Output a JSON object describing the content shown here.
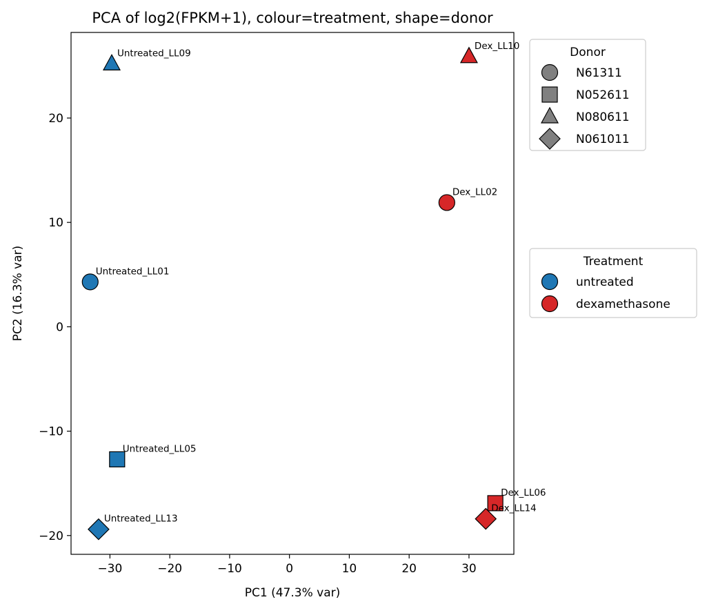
{
  "chart_data": {
    "type": "scatter",
    "title": "PCA of log2(FPKM+1), colour=treatment, shape=donor",
    "xlabel": "PC1 (47.3% var)",
    "ylabel": "PC2 (16.3% var)",
    "xlim": [
      -36.5,
      37.5
    ],
    "ylim": [
      -21.8,
      28.2
    ],
    "xticks": [
      -30,
      -20,
      -10,
      0,
      10,
      20,
      30
    ],
    "xtick_labels": [
      "−30",
      "−20",
      "−10",
      "0",
      "10",
      "20",
      "30"
    ],
    "yticks": [
      -20,
      -10,
      0,
      10,
      20
    ],
    "ytick_labels": [
      "−20",
      "−10",
      "0",
      "10",
      "20"
    ],
    "grid": false,
    "points": [
      {
        "label": "Untreated_LL09",
        "x": -29.7,
        "y": 25.2,
        "treatment": "untreated",
        "donor": "N080611"
      },
      {
        "label": "Untreated_LL01",
        "x": -33.3,
        "y": 4.3,
        "treatment": "untreated",
        "donor": "N61311"
      },
      {
        "label": "Untreated_LL05",
        "x": -28.8,
        "y": -12.7,
        "treatment": "untreated",
        "donor": "N052611"
      },
      {
        "label": "Untreated_LL13",
        "x": -31.9,
        "y": -19.4,
        "treatment": "untreated",
        "donor": "N061011"
      },
      {
        "label": "Dex_LL10",
        "x": 30.0,
        "y": 25.9,
        "treatment": "dexamethasone",
        "donor": "N080611"
      },
      {
        "label": "Dex_LL02",
        "x": 26.3,
        "y": 11.9,
        "treatment": "dexamethasone",
        "donor": "N61311"
      },
      {
        "label": "Dex_LL06",
        "x": 34.4,
        "y": -16.9,
        "treatment": "dexamethasone",
        "donor": "N052611"
      },
      {
        "label": "Dex_LL14",
        "x": 32.8,
        "y": -18.4,
        "treatment": "dexamethasone",
        "donor": "N061011"
      }
    ],
    "legends": {
      "donor": {
        "title": "Donor",
        "placement": "outside-upper-right",
        "entries": [
          {
            "name": "N61311",
            "shape": "circle"
          },
          {
            "name": "N052611",
            "shape": "square"
          },
          {
            "name": "N080611",
            "shape": "triangle"
          },
          {
            "name": "N061011",
            "shape": "diamond"
          }
        ]
      },
      "treatment": {
        "title": "Treatment",
        "placement": "outside-center-right",
        "entries": [
          {
            "name": "untreated",
            "color": "#1f77b4"
          },
          {
            "name": "dexamethasone",
            "color": "#d62728"
          }
        ]
      }
    },
    "colors": {
      "untreated": "#1f77b4",
      "dexamethasone": "#d62728",
      "donor_legend_marker": "#808080",
      "marker_edge": "#000000"
    },
    "shapes": {
      "N61311": "circle",
      "N052611": "square",
      "N080611": "triangle",
      "N061011": "diamond"
    }
  }
}
